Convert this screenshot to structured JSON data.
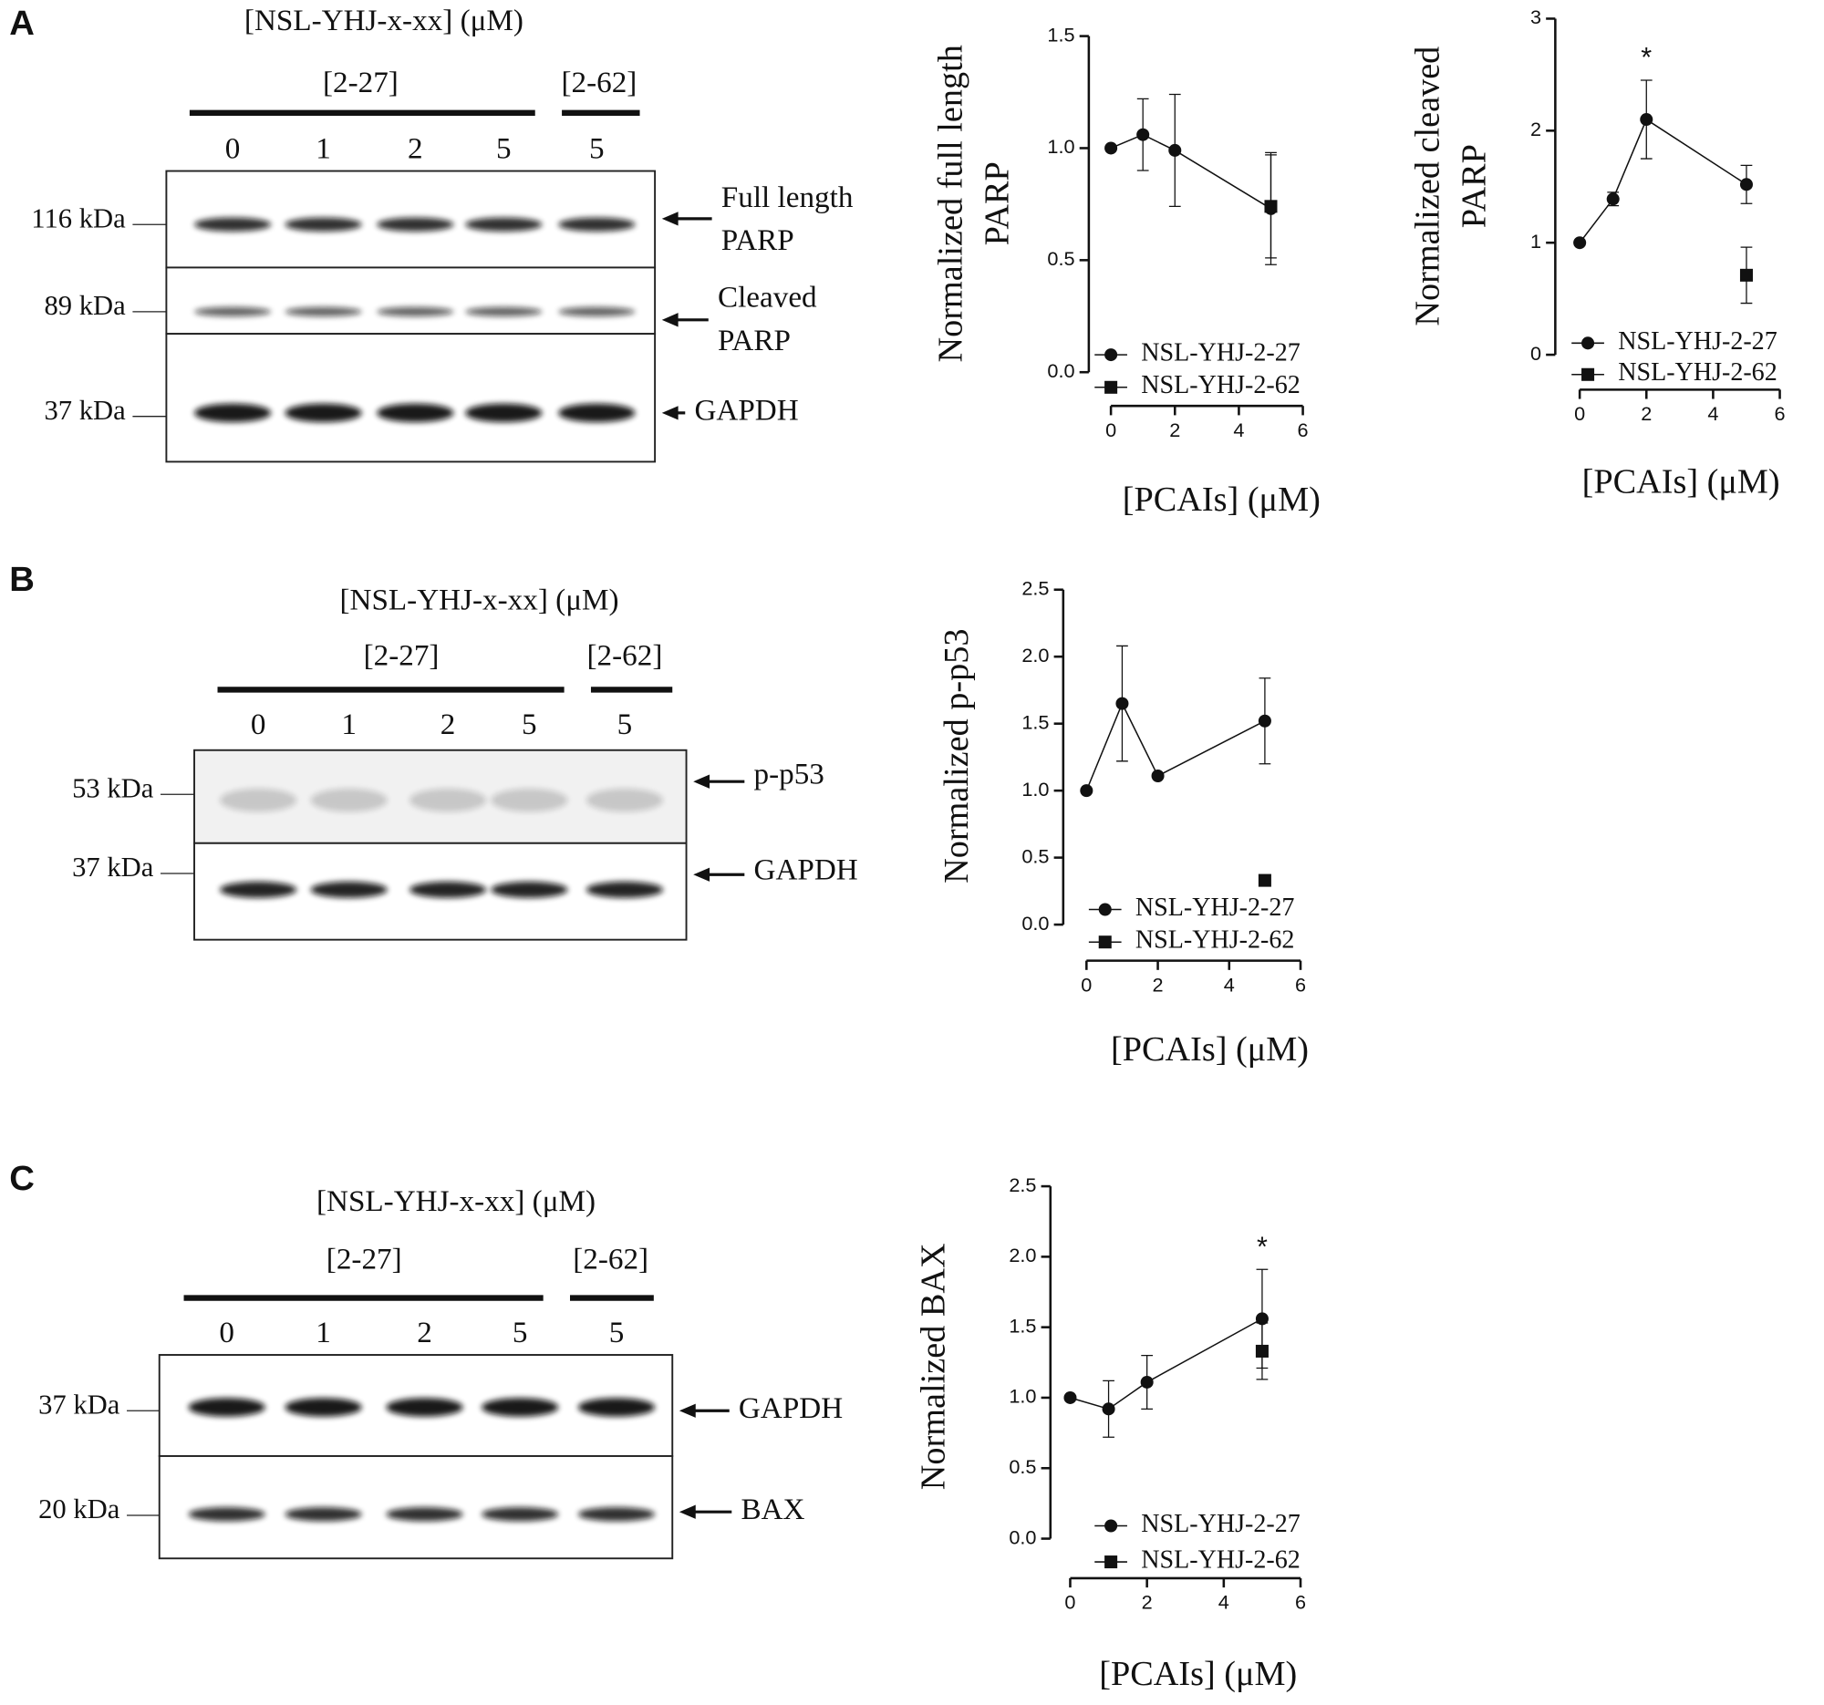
{
  "panels": [
    {
      "letter": "A",
      "blot": {
        "header": "[NSL-YHJ-x-xx]  (μM)",
        "groups": [
          "[2-27]",
          "[2-62]"
        ],
        "lanes": [
          "0",
          "1",
          "2",
          "5",
          "5"
        ],
        "markers": [
          "116 kDa",
          "89 kDa",
          "37 kDa"
        ],
        "bands": [
          [
            "Full length",
            "PARP"
          ],
          [
            "Cleaved",
            "PARP"
          ],
          [
            "GAPDH"
          ]
        ]
      }
    },
    {
      "letter": "B",
      "blot": {
        "header": "[NSL-YHJ-x-xx]  (μM)",
        "groups": [
          "[2-27]",
          "[2-62]"
        ],
        "lanes": [
          "0",
          "1",
          "2",
          "5",
          "5"
        ],
        "markers": [
          "53 kDa",
          "37 kDa"
        ],
        "bands": [
          [
            "p-p53"
          ],
          [
            "GAPDH"
          ]
        ]
      }
    },
    {
      "letter": "C",
      "blot": {
        "header": "[NSL-YHJ-x-xx]  (μM)",
        "groups": [
          "[2-27]",
          "[2-62]"
        ],
        "lanes": [
          "0",
          "1",
          "2",
          "5",
          "5"
        ],
        "markers": [
          "37 kDa",
          "20 kDa"
        ],
        "bands": [
          [
            "GAPDH"
          ],
          [
            "BAX"
          ]
        ]
      }
    }
  ],
  "chart_data": [
    {
      "type": "line",
      "ylabel": [
        "Normalized full length",
        "PARP"
      ],
      "xlabel": "[PCAIs] (μM)",
      "xlim": [
        0,
        6
      ],
      "xticks": [
        0,
        2,
        4,
        6
      ],
      "ylim": [
        0,
        1.5
      ],
      "yticks": [
        {
          "value": 0,
          "label": "0.0"
        },
        0.5,
        {
          "value": 1,
          "label": "1.0"
        },
        1.5
      ],
      "series": [
        {
          "name": "NSL-YHJ-2-27",
          "color": "#111111",
          "marker": "circle",
          "x": [
            0,
            1,
            2,
            5
          ],
          "values": [
            1.0,
            1.06,
            0.99,
            0.73
          ],
          "errors": [
            0,
            0.16,
            0.25,
            0.25
          ]
        },
        {
          "name": "NSL-YHJ-2-62",
          "color": "#111111",
          "marker": "square",
          "x": [
            5
          ],
          "values": [
            0.74
          ],
          "errors": [
            0.23
          ]
        }
      ],
      "annotations": []
    },
    {
      "type": "line",
      "ylabel": [
        "Normalized cleaved",
        "PARP"
      ],
      "xlabel": "[PCAIs] (μM)",
      "xlim": [
        0,
        6
      ],
      "xticks": [
        0,
        2,
        4,
        6
      ],
      "ylim": [
        0,
        3
      ],
      "yticks": [
        0,
        1,
        2,
        3
      ],
      "series": [
        {
          "name": "NSL-YHJ-2-27",
          "color": "#111111",
          "marker": "circle",
          "x": [
            0,
            1,
            2,
            5
          ],
          "values": [
            1.0,
            1.39,
            2.1,
            1.52
          ],
          "errors": [
            0,
            0.06,
            0.35,
            0.17
          ]
        },
        {
          "name": "NSL-YHJ-2-62",
          "color": "#111111",
          "marker": "square",
          "x": [
            5
          ],
          "values": [
            0.71
          ],
          "errors": [
            0.25
          ]
        }
      ],
      "annotations": [
        {
          "text": "*",
          "x": 2
        }
      ]
    },
    {
      "type": "line",
      "ylabel": [
        "Normalized p-p53"
      ],
      "xlabel": "[PCAIs] (μM)",
      "xlim": [
        0,
        6
      ],
      "xticks": [
        0,
        2,
        4,
        6
      ],
      "ylim": [
        0,
        2.5
      ],
      "yticks": [
        {
          "value": 0,
          "label": "0.0"
        },
        0.5,
        {
          "value": 1,
          "label": "1.0"
        },
        1.5,
        {
          "value": 2,
          "label": "2.0"
        },
        2.5
      ],
      "series": [
        {
          "name": "NSL-YHJ-2-27",
          "color": "#111111",
          "marker": "circle",
          "x": [
            0,
            1,
            2,
            5
          ],
          "values": [
            1.0,
            1.65,
            1.11,
            1.52
          ],
          "errors": [
            0,
            0.43,
            0,
            0.32
          ]
        },
        {
          "name": "NSL-YHJ-2-62",
          "color": "#111111",
          "marker": "square",
          "x": [
            5
          ],
          "values": [
            0.33
          ],
          "errors": [
            0
          ]
        }
      ],
      "annotations": []
    },
    {
      "type": "line",
      "ylabel": [
        "Normalized BAX"
      ],
      "xlabel": "[PCAIs] (μM)",
      "xlim": [
        0,
        6
      ],
      "xticks": [
        0,
        2,
        4,
        6
      ],
      "ylim": [
        0,
        2.5
      ],
      "yticks": [
        {
          "value": 0,
          "label": "0.0"
        },
        0.5,
        {
          "value": 1,
          "label": "1.0"
        },
        1.5,
        {
          "value": 2,
          "label": "2.0"
        },
        2.5
      ],
      "series": [
        {
          "name": "NSL-YHJ-2-27",
          "color": "#111111",
          "marker": "circle",
          "x": [
            0,
            1,
            2,
            5
          ],
          "values": [
            1.0,
            0.92,
            1.11,
            1.56
          ],
          "errors": [
            0,
            0.2,
            0.19,
            0.35
          ]
        },
        {
          "name": "NSL-YHJ-2-62",
          "color": "#111111",
          "marker": "square",
          "x": [
            5
          ],
          "values": [
            1.33
          ],
          "errors": [
            0.2
          ]
        }
      ],
      "annotations": [
        {
          "text": "*",
          "x": 5
        }
      ]
    }
  ]
}
